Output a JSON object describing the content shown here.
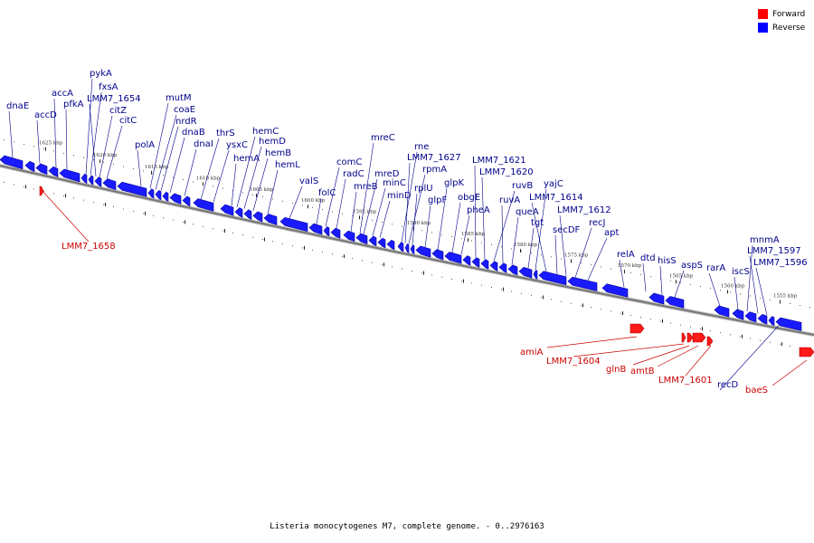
{
  "caption": "Listeria monocytogenes M7, complete genome. - 0..2976163",
  "legend": {
    "forward": {
      "label": "Forward",
      "color": "#ff0000"
    },
    "reverse": {
      "label": "Reverse",
      "color": "#0000ff"
    }
  },
  "colors": {
    "forward_gene": "#ff1a1a",
    "reverse_gene": "#1a1aff",
    "backbone": "#777777",
    "leader_reverse": "#00008b",
    "leader_forward": "#cc0000",
    "label_reverse": "#00008b",
    "label_forward": "#cc0000"
  },
  "scale": {
    "kbp_ticks": [
      "1555 kbp",
      "1560 kbp",
      "1565 kbp",
      "1570 kbp",
      "1575 kbp",
      "1580 kbp",
      "1585 kbp",
      "1590 kbp",
      "1595 kbp",
      "1600 kbp",
      "1605 kbp",
      "1610 kbp",
      "1615 kbp",
      "1620 kbp",
      "1625 kbp"
    ]
  },
  "genes_reverse": [
    "dnaE",
    "accD",
    "accA",
    "pfkA",
    "pykA",
    "fxsA",
    "LMM7_1654",
    "citZ",
    "citC",
    "polA",
    "mutM",
    "coaE",
    "nrdR",
    "dnaB",
    "dnaI",
    "thrS",
    "ysxC",
    "hemA",
    "hemC",
    "hemD",
    "hemB",
    "hemL",
    "valS",
    "folC",
    "comC",
    "radC",
    "mreB",
    "mreC",
    "mreD",
    "minC",
    "minD",
    "rne",
    "LMM7_1627",
    "rpmA",
    "rplU",
    "glpF",
    "glpK",
    "obgE",
    "pheA",
    "LMM7_1621",
    "LMM7_1620",
    "ruvB",
    "ruvA",
    "queA",
    "tgt",
    "yajC",
    "LMM7_1614",
    "secDF",
    "LMM7_1612",
    "recJ",
    "apt",
    "relA",
    "dtd",
    "hisS",
    "aspS",
    "rarA",
    "iscS",
    "mnmA",
    "LMM7_1597",
    "LMM7_1596",
    "recD"
  ],
  "genes_forward": [
    "LMM7_1658",
    "amiA",
    "LMM7_1604",
    "glnB",
    "amtB",
    "LMM7_1601",
    "baeS"
  ]
}
